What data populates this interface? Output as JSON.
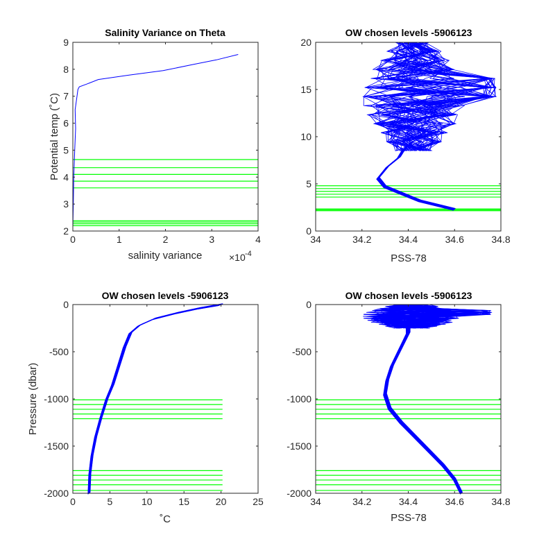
{
  "colors": {
    "profile": "#0000ff",
    "levels": "#00ff00",
    "axis": "#262626"
  },
  "chart_data": [
    {
      "type": "line",
      "title": "Salinity Variance on Theta",
      "xlabel": "salinity variance",
      "ylabel": "Potential temp (˚C)",
      "x_exponent_label": "×10",
      "x_exponent": "-4",
      "xlim": [
        0,
        4
      ],
      "ylim": [
        2,
        9
      ],
      "xticks": [
        "0",
        "1",
        "2",
        "3",
        "4"
      ],
      "yticks": [
        "2",
        "3",
        "4",
        "5",
        "6",
        "7",
        "8",
        "9"
      ],
      "series": [
        {
          "x": [
            0.0,
            0.01,
            0.02,
            0.04,
            0.06,
            0.05,
            0.09,
            0.11,
            0.14,
            0.3,
            0.55,
            1.2,
            1.95,
            2.6,
            3.1,
            3.57
          ],
          "y": [
            2.15,
            3.0,
            4.0,
            5.0,
            5.8,
            6.5,
            7.0,
            7.25,
            7.35,
            7.45,
            7.62,
            7.78,
            7.95,
            8.18,
            8.35,
            8.55
          ]
        }
      ],
      "levels": [
        2.2,
        2.27,
        2.33,
        2.38,
        3.6,
        3.85,
        4.1,
        4.35,
        4.65
      ],
      "level_xrange": [
        0,
        4
      ]
    },
    {
      "type": "line",
      "title": "OW chosen levels -5906123",
      "xlabel": "PSS-78",
      "ylabel": "",
      "xlim": [
        34,
        34.8
      ],
      "ylim": [
        0,
        20
      ],
      "xticks": [
        "34",
        "34.2",
        "34.4",
        "34.6",
        "34.8"
      ],
      "yticks": [
        "0",
        "5",
        "10",
        "15",
        "20"
      ],
      "series": [
        {
          "x": [
            34.6,
            34.45,
            34.3,
            34.27,
            34.31,
            34.36,
            34.38,
            34.42
          ],
          "y": [
            2.3,
            3.2,
            4.7,
            5.6,
            6.8,
            7.8,
            8.6,
            9.5
          ]
        }
      ],
      "scatter_band": {
        "xlim": [
          34.11,
          34.78
        ],
        "ylim": [
          8.5,
          20.0
        ],
        "peak_x": 34.78,
        "peak_y": 15.2
      },
      "levels": [
        2.15,
        2.25,
        2.35,
        3.6,
        3.9,
        4.2,
        4.5,
        4.8
      ],
      "level_xrange": [
        34,
        34.8
      ]
    },
    {
      "type": "line",
      "title": "OW chosen levels -5906123",
      "xlabel": "˚C",
      "ylabel": "Pressure (dbar)",
      "xlim": [
        0,
        25
      ],
      "ylim": [
        -2000,
        0
      ],
      "xticks": [
        "0",
        "5",
        "10",
        "15",
        "20",
        "25"
      ],
      "yticks": [
        "-2000",
        "-1500",
        "-1000",
        "-500",
        "0"
      ],
      "series": [
        {
          "x": [
            2.2,
            2.3,
            2.6,
            3.1,
            3.8,
            4.6,
            5.4,
            6.2,
            7.0,
            7.8,
            9.0,
            11.0,
            14.0,
            17.0,
            20.0
          ],
          "y": [
            -2000,
            -1800,
            -1600,
            -1400,
            -1200,
            -1000,
            -850,
            -650,
            -450,
            -300,
            -220,
            -150,
            -90,
            -40,
            0
          ]
        }
      ],
      "levels": [
        -1010,
        -1060,
        -1110,
        -1160,
        -1210,
        -1760,
        -1810,
        -1860,
        -1910,
        -1970
      ],
      "level_xrange": [
        0,
        20.2
      ]
    },
    {
      "type": "line",
      "title": "OW chosen levels -5906123",
      "xlabel": "PSS-78",
      "ylabel": "",
      "xlim": [
        34,
        34.8
      ],
      "ylim": [
        -2000,
        0
      ],
      "xticks": [
        "34",
        "34.2",
        "34.4",
        "34.6",
        "34.8"
      ],
      "yticks": [
        "-2000",
        "-1500",
        "-1000",
        "-500",
        "0"
      ],
      "series": [
        {
          "x": [
            34.63,
            34.6,
            34.55,
            34.49,
            34.43,
            34.37,
            34.32,
            34.3,
            34.31,
            34.33,
            34.36,
            34.38,
            34.4,
            34.4
          ],
          "y": [
            -2000,
            -1850,
            -1700,
            -1550,
            -1400,
            -1250,
            -1100,
            -950,
            -800,
            -650,
            -500,
            -400,
            -300,
            -200
          ]
        }
      ],
      "scatter_band": {
        "xlim": [
          34.11,
          34.76
        ],
        "ylim": [
          -250,
          0
        ],
        "peak_x": 34.76,
        "peak_y": -80
      },
      "levels": [
        -1010,
        -1060,
        -1110,
        -1160,
        -1210,
        -1760,
        -1810,
        -1860,
        -1910,
        -1970
      ],
      "level_xrange": [
        34,
        34.8
      ]
    }
  ]
}
